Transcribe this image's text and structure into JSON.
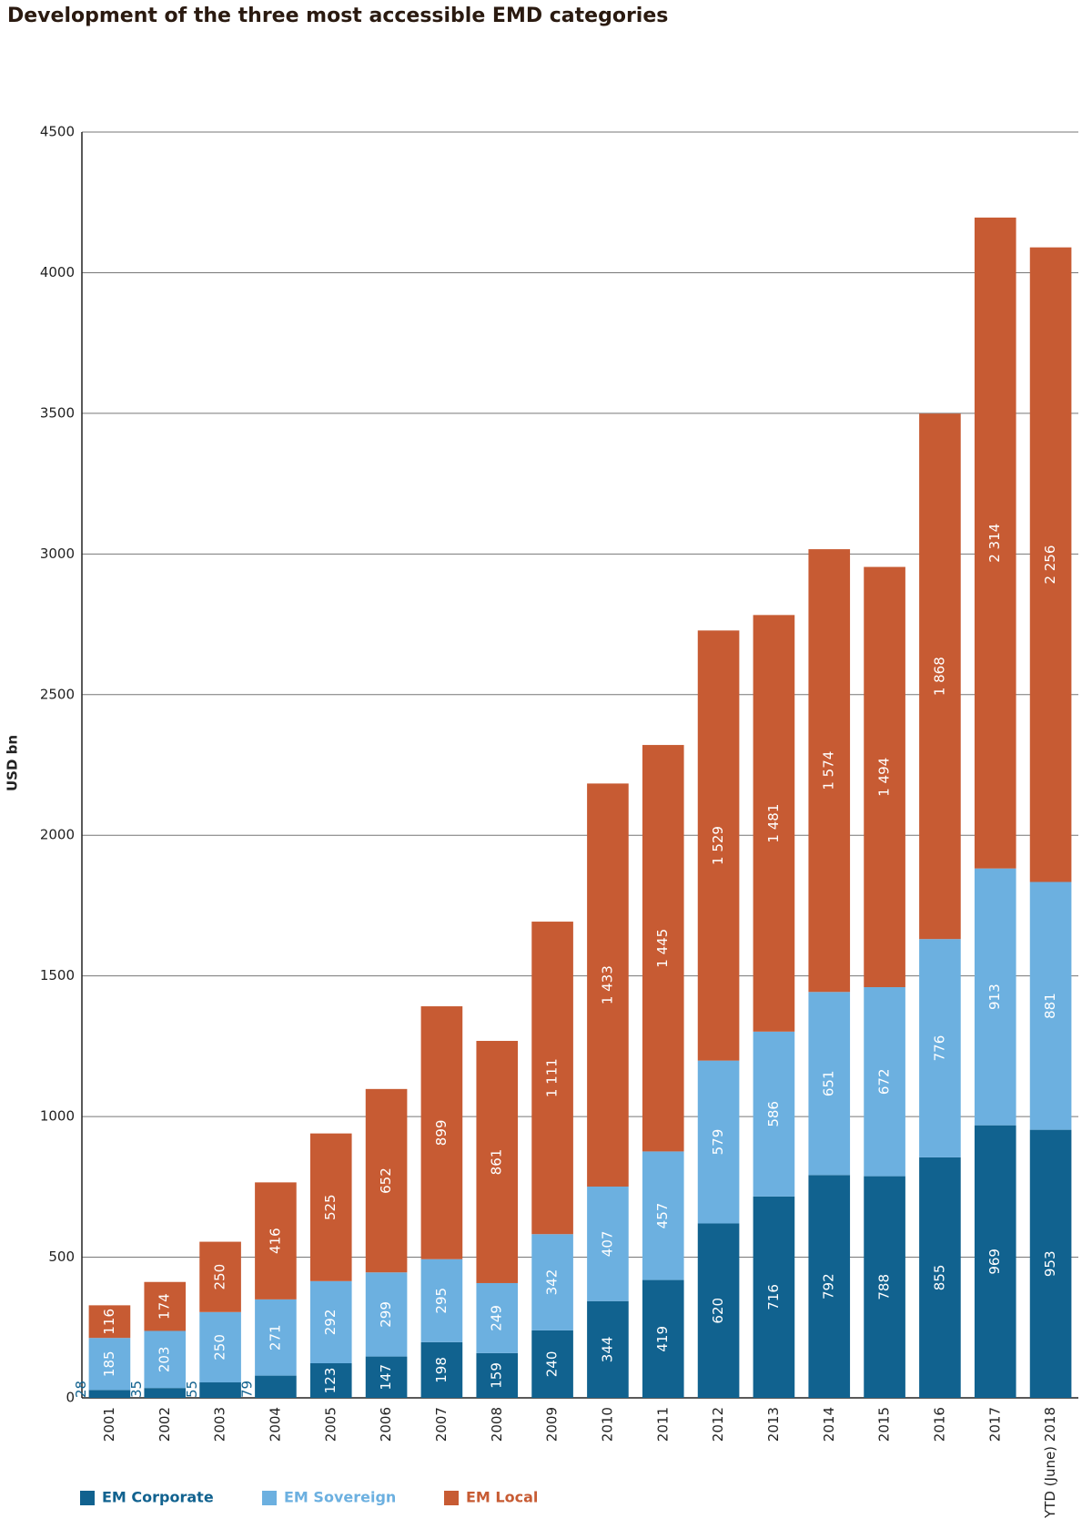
{
  "chart_data": {
    "type": "stacked-bar",
    "title": "Development of the three most accessible EMD categories",
    "y_label": "USD bn",
    "categories": [
      "2001",
      "2002",
      "2003",
      "2004",
      "2005",
      "2006",
      "2007",
      "2008",
      "2009",
      "2010",
      "2011",
      "2012",
      "2013",
      "2014",
      "2015",
      "2016",
      "2017",
      "YTD (June) 2018"
    ],
    "series": [
      {
        "name": "EM Corporate",
        "color": "#11628f",
        "values": [
          28,
          35,
          55,
          79,
          123,
          147,
          198,
          159,
          240,
          344,
          419,
          620,
          716,
          792,
          788,
          855,
          969,
          953
        ]
      },
      {
        "name": "EM Sovereign",
        "color": "#6cb0e0",
        "values": [
          185,
          203,
          250,
          271,
          292,
          299,
          295,
          249,
          342,
          407,
          457,
          579,
          586,
          651,
          672,
          776,
          913,
          881
        ]
      },
      {
        "name": "EM Local",
        "color": "#c75b33",
        "values": [
          116,
          174,
          250,
          416,
          525,
          652,
          899,
          861,
          1111,
          1433,
          1445,
          1529,
          1481,
          1574,
          1494,
          1868,
          2314,
          2256
        ],
        "value_labels": [
          "116",
          "174",
          "250",
          "416",
          "525",
          "652",
          "899",
          "861",
          "1 111",
          "1 433",
          "1 445",
          "1 529",
          "1 481",
          "1 574",
          "1 494",
          "1 868",
          "2 314",
          "2 256"
        ]
      }
    ],
    "ylim": [
      0,
      4500
    ],
    "yticks": [
      0,
      500,
      1000,
      1500,
      2000,
      2500,
      3000,
      3500,
      4000,
      4500
    ],
    "grid": true,
    "legend": "bottom"
  }
}
